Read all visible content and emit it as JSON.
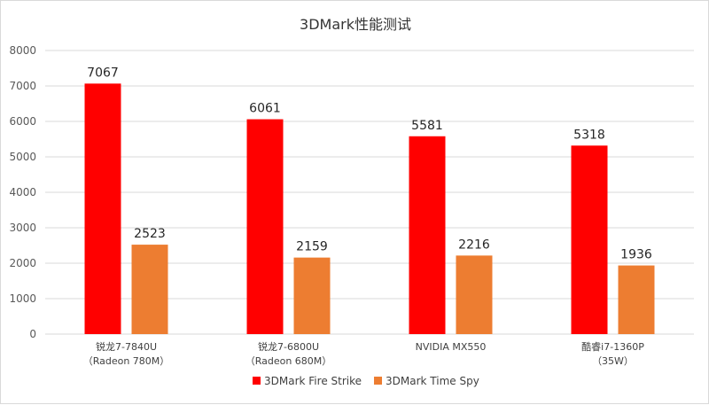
{
  "chart_data": {
    "type": "bar",
    "title": "3DMark性能测试",
    "xlabel": "",
    "ylabel": "",
    "categories": [
      [
        "锐龙7-7840U",
        "（Radeon 780M）"
      ],
      [
        "锐龙7-6800U",
        "（Radeon 680M）"
      ],
      [
        "NVIDIA MX550"
      ],
      [
        "酷睿i7-1360P",
        "（35W）"
      ]
    ],
    "series": [
      {
        "name": "3DMark Fire Strike",
        "color": "#ff0000",
        "values": [
          7067,
          6061,
          5581,
          5318
        ]
      },
      {
        "name": "3DMark Time Spy",
        "color": "#ed7d31",
        "values": [
          2523,
          2159,
          2216,
          1936
        ]
      }
    ],
    "ylim": [
      0,
      8000
    ],
    "yticks": [
      0,
      1000,
      2000,
      3000,
      4000,
      5000,
      6000,
      7000,
      8000
    ],
    "grid": true,
    "legend": "bottom"
  }
}
